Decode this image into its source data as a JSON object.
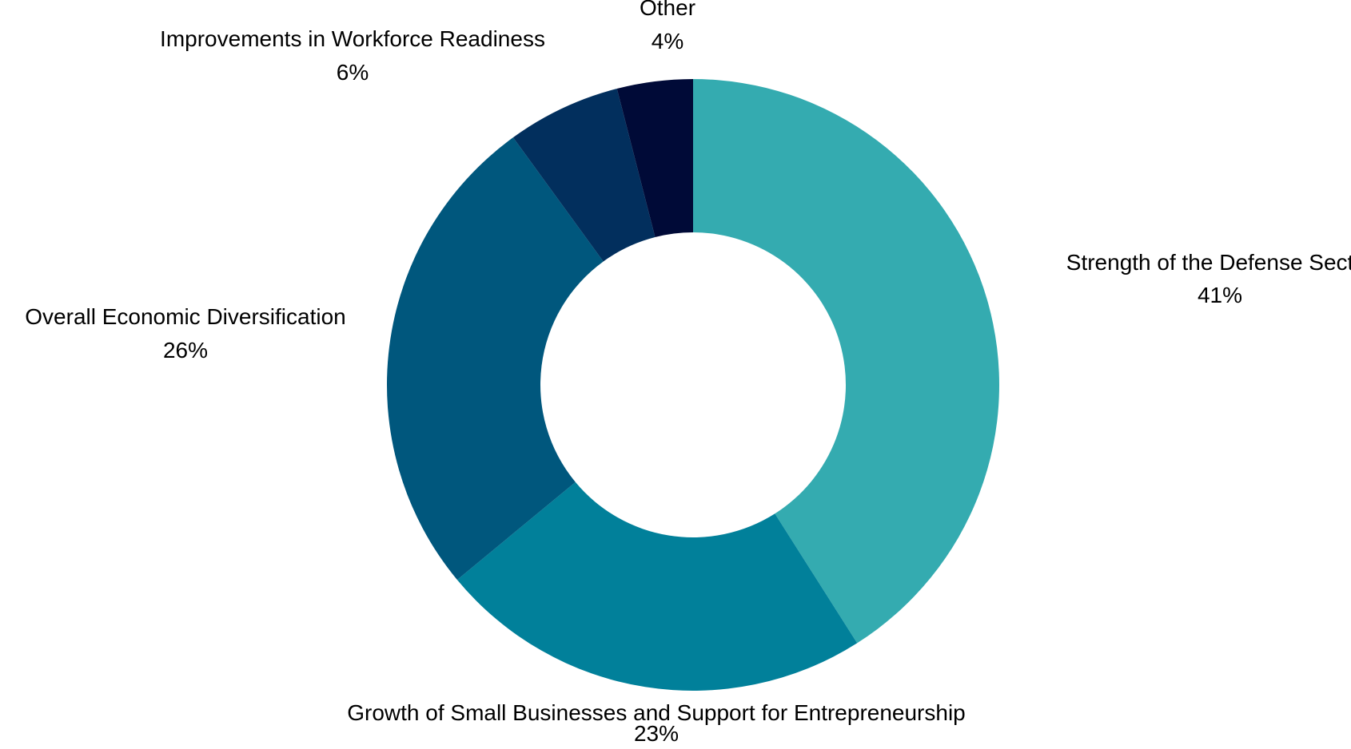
{
  "chart_data": {
    "type": "pie",
    "variant": "donut",
    "title": "",
    "slices": [
      {
        "label": "Strength of the Defense Sector",
        "value": 41,
        "display": "41%",
        "color": "#34abb0"
      },
      {
        "label": "Growth of Small Businesses and Support for Entrepreneurship",
        "value": 23,
        "display": "23%",
        "color": "#01809a"
      },
      {
        "label": "Overall Economic Diversification",
        "value": 26,
        "display": "26%",
        "color": "#00577d"
      },
      {
        "label": "Improvements in Workforce Readiness",
        "value": 6,
        "display": "6%",
        "color": "#022f5d"
      },
      {
        "label": "Other",
        "value": 4,
        "display": "4%",
        "color": "#000a37"
      }
    ],
    "start_angle": "12 o'clock",
    "direction": "clockwise",
    "legend": "none",
    "labels": "outside"
  }
}
